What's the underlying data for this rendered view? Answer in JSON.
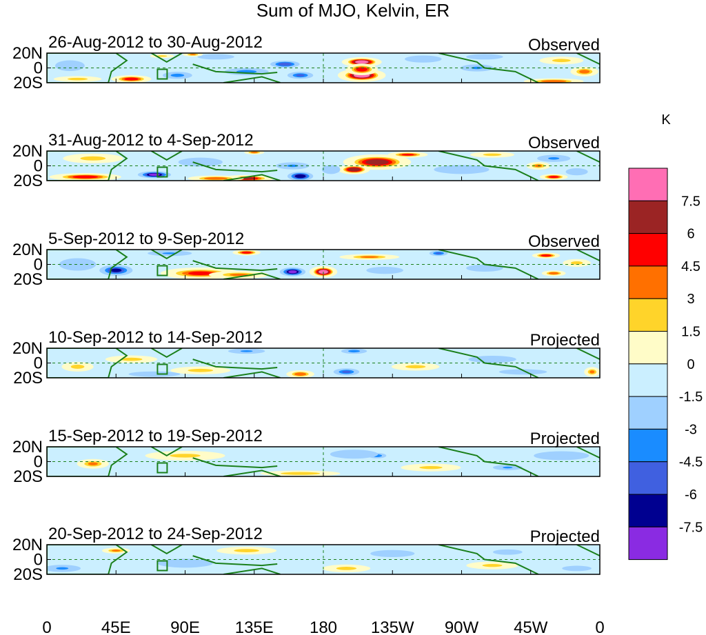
{
  "chart_data": {
    "type": "heatmap",
    "title": "Sum of MJO, Kelvin, ER",
    "units": "K",
    "x_ticks": [
      "0",
      "45E",
      "90E",
      "135E",
      "180",
      "135W",
      "90W",
      "45W",
      "0"
    ],
    "x_tick_longitudes": [
      0,
      45,
      90,
      135,
      180,
      225,
      270,
      315,
      360
    ],
    "y_ticks": [
      "20N",
      "0",
      "20S"
    ],
    "y_tick_latitudes": [
      20,
      0,
      -20
    ],
    "lon_range": [
      0,
      360
    ],
    "lat_range": [
      -20,
      20
    ],
    "colorbar": {
      "levels": [
        "7.5",
        "6",
        "4.5",
        "3",
        "1.5",
        "0",
        "-1.5",
        "-3",
        "-4.5",
        "-6",
        "-7.5"
      ],
      "colors": [
        "#ff6eb4",
        "#9b2424",
        "#ff0000",
        "#ff7000",
        "#ffd42a",
        "#fffcc8",
        "#cbefff",
        "#9fd0ff",
        "#1a8cff",
        "#4060e0",
        "#000090",
        "#8a2be2"
      ]
    },
    "panels": [
      {
        "period": "26-Aug-2012 to 30-Aug-2012",
        "status": "Observed",
        "anomalies": [
          {
            "lon": 205,
            "lat": 8,
            "value": 8.0,
            "width": 20,
            "height": 10
          },
          {
            "lon": 205,
            "lat": -10,
            "value": 8.0,
            "width": 24,
            "height": 14
          },
          {
            "lon": 205,
            "lat": -2,
            "value": 5.0,
            "width": 16,
            "height": 12
          },
          {
            "lon": 55,
            "lat": -15,
            "value": 5.0,
            "width": 20,
            "height": 8
          },
          {
            "lon": 330,
            "lat": -18,
            "value": 4.0,
            "width": 30,
            "height": 6
          },
          {
            "lon": 350,
            "lat": -5,
            "value": 3.5,
            "width": 14,
            "height": 10
          },
          {
            "lon": 155,
            "lat": 5,
            "value": -5.5,
            "width": 16,
            "height": 8
          },
          {
            "lon": 165,
            "lat": -10,
            "value": -4.5,
            "width": 14,
            "height": 8
          },
          {
            "lon": 130,
            "lat": -5,
            "value": -3.5,
            "width": 24,
            "height": 8
          },
          {
            "lon": 85,
            "lat": -10,
            "value": -3.5,
            "width": 16,
            "height": 8
          },
          {
            "lon": 280,
            "lat": 0,
            "value": -3.0,
            "width": 18,
            "height": 8
          },
          {
            "lon": 285,
            "lat": 15,
            "value": -2.5,
            "width": 20,
            "height": 6
          },
          {
            "lon": 15,
            "lat": 3,
            "value": -2.0,
            "width": 16,
            "height": 12
          },
          {
            "lon": 20,
            "lat": -15,
            "value": 2.0,
            "width": 24,
            "height": 6
          },
          {
            "lon": 110,
            "lat": 15,
            "value": -2.0,
            "width": 20,
            "height": 6
          },
          {
            "lon": 245,
            "lat": 12,
            "value": -2.0,
            "width": 20,
            "height": 8
          },
          {
            "lon": 335,
            "lat": 10,
            "value": 2.0,
            "width": 22,
            "height": 8
          },
          {
            "lon": 95,
            "lat": 18,
            "value": 3.0,
            "width": 10,
            "height": 4
          },
          {
            "lon": 75,
            "lat": 16,
            "value": 2.0,
            "width": 12,
            "height": 4
          }
        ]
      },
      {
        "period": "31-Aug-2012 to 4-Sep-2012",
        "status": "Observed",
        "anomalies": [
          {
            "lon": 215,
            "lat": 5,
            "value": 6.5,
            "width": 34,
            "height": 16
          },
          {
            "lon": 200,
            "lat": -5,
            "value": 7.0,
            "width": 16,
            "height": 10
          },
          {
            "lon": 235,
            "lat": 15,
            "value": 4.5,
            "width": 20,
            "height": 6
          },
          {
            "lon": 25,
            "lat": -15,
            "value": 5.0,
            "width": 36,
            "height": 8
          },
          {
            "lon": 130,
            "lat": -17,
            "value": 6.0,
            "width": 28,
            "height": 7
          },
          {
            "lon": 110,
            "lat": -17,
            "value": 4.0,
            "width": 28,
            "height": 6
          },
          {
            "lon": 330,
            "lat": -15,
            "value": 5.0,
            "width": 14,
            "height": 6
          },
          {
            "lon": 320,
            "lat": 0,
            "value": 3.0,
            "width": 12,
            "height": 8
          },
          {
            "lon": 135,
            "lat": 18,
            "value": 3.5,
            "width": 10,
            "height": 4
          },
          {
            "lon": 70,
            "lat": -12,
            "value": -7.5,
            "width": 18,
            "height": 8
          },
          {
            "lon": 165,
            "lat": -14,
            "value": -7.0,
            "width": 14,
            "height": 10
          },
          {
            "lon": 160,
            "lat": 0,
            "value": -3.0,
            "width": 18,
            "height": 8
          },
          {
            "lon": 185,
            "lat": -5,
            "value": -2.5,
            "width": 10,
            "height": 10
          },
          {
            "lon": 330,
            "lat": 10,
            "value": -3.0,
            "width": 18,
            "height": 8
          },
          {
            "lon": 345,
            "lat": -8,
            "value": -2.5,
            "width": 12,
            "height": 8
          },
          {
            "lon": 30,
            "lat": 10,
            "value": 2.0,
            "width": 30,
            "height": 10
          },
          {
            "lon": 100,
            "lat": 5,
            "value": -2.0,
            "width": 24,
            "height": 10
          },
          {
            "lon": 270,
            "lat": -5,
            "value": -2.0,
            "width": 30,
            "height": 10
          },
          {
            "lon": 290,
            "lat": 15,
            "value": 2.0,
            "width": 22,
            "height": 6
          }
        ]
      },
      {
        "period": "5-Sep-2012 to 9-Sep-2012",
        "status": "Observed",
        "anomalies": [
          {
            "lon": 180,
            "lat": -10,
            "value": 8.0,
            "width": 14,
            "height": 12
          },
          {
            "lon": 100,
            "lat": -12,
            "value": 4.5,
            "width": 40,
            "height": 12
          },
          {
            "lon": 125,
            "lat": -14,
            "value": 3.0,
            "width": 30,
            "height": 8
          },
          {
            "lon": 130,
            "lat": 16,
            "value": 5.0,
            "width": 14,
            "height": 6
          },
          {
            "lon": 325,
            "lat": 12,
            "value": 5.0,
            "width": 14,
            "height": 6
          },
          {
            "lon": 330,
            "lat": -12,
            "value": 4.0,
            "width": 12,
            "height": 6
          },
          {
            "lon": 210,
            "lat": 10,
            "value": 3.0,
            "width": 30,
            "height": 6
          },
          {
            "lon": 45,
            "lat": -8,
            "value": -6.0,
            "width": 18,
            "height": 12
          },
          {
            "lon": 160,
            "lat": -10,
            "value": -7.5,
            "width": 14,
            "height": 10
          },
          {
            "lon": 80,
            "lat": 15,
            "value": -3.0,
            "width": 24,
            "height": 6
          },
          {
            "lon": 255,
            "lat": 15,
            "value": -4.5,
            "width": 10,
            "height": 6
          },
          {
            "lon": 285,
            "lat": -5,
            "value": -2.5,
            "width": 20,
            "height": 8
          },
          {
            "lon": 20,
            "lat": 0,
            "value": -2.0,
            "width": 20,
            "height": 14
          },
          {
            "lon": 220,
            "lat": -8,
            "value": -2.0,
            "width": 20,
            "height": 8
          },
          {
            "lon": 345,
            "lat": 2,
            "value": 2.0,
            "width": 14,
            "height": 8
          }
        ]
      },
      {
        "period": "10-Sep-2012 to 14-Sep-2012",
        "status": "Projected",
        "anomalies": [
          {
            "lon": 165,
            "lat": -15,
            "value": 4.0,
            "width": 14,
            "height": 8
          },
          {
            "lon": 195,
            "lat": -12,
            "value": -4.5,
            "width": 14,
            "height": 8
          },
          {
            "lon": 200,
            "lat": 16,
            "value": -3.5,
            "width": 14,
            "height": 6
          },
          {
            "lon": 130,
            "lat": 16,
            "value": -3.0,
            "width": 20,
            "height": 6
          },
          {
            "lon": 70,
            "lat": -15,
            "value": -2.5,
            "width": 28,
            "height": 6
          },
          {
            "lon": 310,
            "lat": -12,
            "value": -2.5,
            "width": 26,
            "height": 6
          },
          {
            "lon": 55,
            "lat": 5,
            "value": 2.0,
            "width": 26,
            "height": 8
          },
          {
            "lon": 100,
            "lat": -10,
            "value": 2.0,
            "width": 30,
            "height": 8
          },
          {
            "lon": 355,
            "lat": -12,
            "value": 3.0,
            "width": 8,
            "height": 10
          },
          {
            "lon": 20,
            "lat": -5,
            "value": 2.0,
            "width": 16,
            "height": 10
          },
          {
            "lon": 290,
            "lat": 5,
            "value": -2.0,
            "width": 26,
            "height": 8
          },
          {
            "lon": 240,
            "lat": -5,
            "value": 2.0,
            "width": 24,
            "height": 8
          }
        ]
      },
      {
        "period": "15-Sep-2012 to 19-Sep-2012",
        "status": "Projected",
        "anomalies": [
          {
            "lon": 30,
            "lat": -3,
            "value": 3.0,
            "width": 16,
            "height": 10
          },
          {
            "lon": 215,
            "lat": 8,
            "value": -4.0,
            "width": 10,
            "height": 6
          },
          {
            "lon": 200,
            "lat": 10,
            "value": -2.5,
            "width": 26,
            "height": 10
          },
          {
            "lon": 300,
            "lat": -8,
            "value": -3.0,
            "width": 16,
            "height": 6
          },
          {
            "lon": 165,
            "lat": -16,
            "value": 2.5,
            "width": 40,
            "height": 6
          },
          {
            "lon": 335,
            "lat": 8,
            "value": -2.0,
            "width": 30,
            "height": 10
          },
          {
            "lon": 90,
            "lat": 8,
            "value": 1.8,
            "width": 40,
            "height": 10
          },
          {
            "lon": 250,
            "lat": -8,
            "value": 1.8,
            "width": 30,
            "height": 8
          }
        ]
      },
      {
        "period": "20-Sep-2012 to 24-Sep-2012",
        "status": "Projected",
        "anomalies": [
          {
            "lon": 45,
            "lat": 12,
            "value": 3.0,
            "width": 14,
            "height": 6
          },
          {
            "lon": 130,
            "lat": 12,
            "value": 2.0,
            "width": 30,
            "height": 8
          },
          {
            "lon": 195,
            "lat": -12,
            "value": 2.0,
            "width": 24,
            "height": 8
          },
          {
            "lon": 225,
            "lat": 8,
            "value": -2.5,
            "width": 24,
            "height": 8
          },
          {
            "lon": 300,
            "lat": 10,
            "value": -2.5,
            "width": 16,
            "height": 6
          },
          {
            "lon": 10,
            "lat": -12,
            "value": -3.0,
            "width": 20,
            "height": 8
          },
          {
            "lon": 90,
            "lat": -5,
            "value": -2.0,
            "width": 30,
            "height": 10
          },
          {
            "lon": 290,
            "lat": -8,
            "value": 1.8,
            "width": 26,
            "height": 8
          },
          {
            "lon": 345,
            "lat": -12,
            "value": -2.0,
            "width": 16,
            "height": 6
          }
        ]
      }
    ]
  }
}
